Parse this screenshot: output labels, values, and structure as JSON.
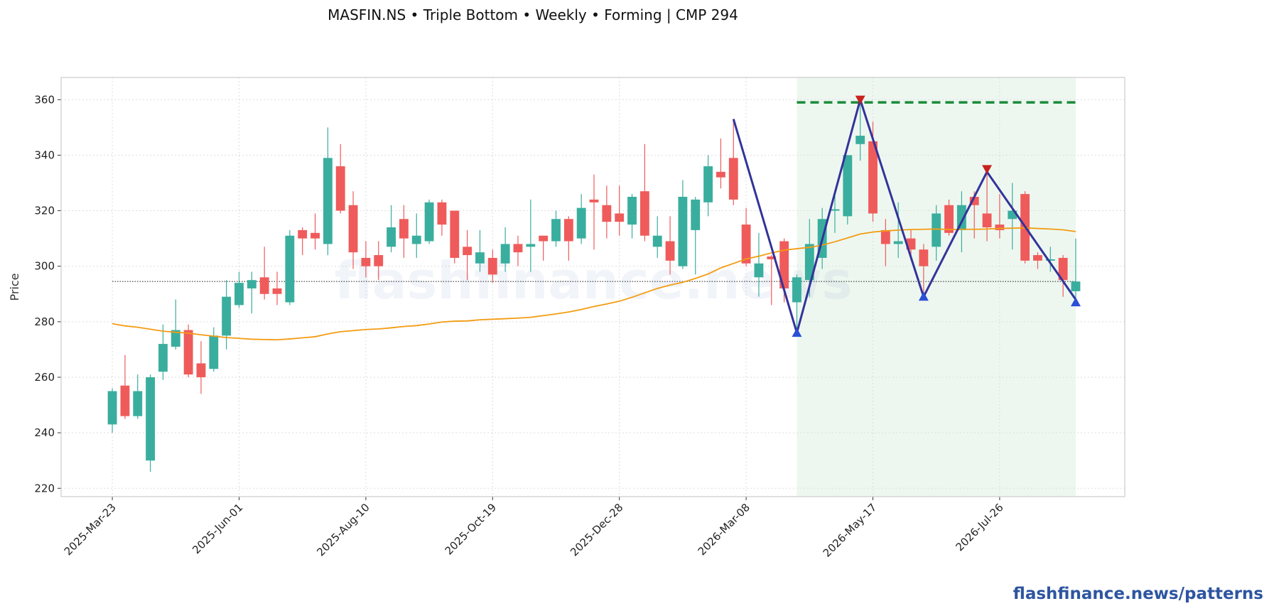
{
  "chart_data": {
    "type": "candlestick",
    "title": "MASFIN.NS  •  Triple Bottom  •  Weekly  •  Forming  |  CMP 294",
    "ylabel": "Price",
    "watermark": "flashfinance.news",
    "footer": "flashfinance.news/patterns",
    "x": [
      "2025-Mar-23",
      "2025-Mar-30",
      "2025-Apr-06",
      "2025-Apr-13",
      "2025-Apr-20",
      "2025-Apr-27",
      "2025-May-04",
      "2025-May-11",
      "2025-May-18",
      "2025-May-25",
      "2025-Jun-01",
      "2025-Jun-08",
      "2025-Jun-15",
      "2025-Jun-22",
      "2025-Jun-29",
      "2025-Jul-06",
      "2025-Jul-13",
      "2025-Jul-20",
      "2025-Jul-27",
      "2025-Aug-03",
      "2025-Aug-10",
      "2025-Aug-17",
      "2025-Aug-24",
      "2025-Aug-31",
      "2025-Sep-07",
      "2025-Sep-14",
      "2025-Sep-21",
      "2025-Sep-28",
      "2025-Oct-05",
      "2025-Oct-12",
      "2025-Oct-19",
      "2025-Oct-26",
      "2025-Nov-02",
      "2025-Nov-09",
      "2025-Nov-16",
      "2025-Nov-23",
      "2025-Nov-30",
      "2025-Dec-07",
      "2025-Dec-14",
      "2025-Dec-21",
      "2025-Dec-28",
      "2026-Jan-04",
      "2026-Jan-11",
      "2026-Jan-18",
      "2026-Jan-25",
      "2026-Feb-01",
      "2026-Feb-08",
      "2026-Feb-15",
      "2026-Feb-22",
      "2026-Mar-01",
      "2026-Mar-08",
      "2026-Mar-15",
      "2026-Mar-22",
      "2026-Mar-29",
      "2026-Apr-05",
      "2026-Apr-12",
      "2026-Apr-19",
      "2026-Apr-26",
      "2026-May-03",
      "2026-May-10",
      "2026-May-17",
      "2026-May-24",
      "2026-May-31",
      "2026-Jun-07",
      "2026-Jun-14",
      "2026-Jun-21",
      "2026-Jun-28",
      "2026-Jul-05",
      "2026-Jul-12",
      "2026-Jul-19",
      "2026-Jul-26",
      "2026-Aug-02",
      "2026-Aug-09",
      "2026-Aug-16",
      "2026-Aug-23",
      "2026-Aug-30",
      "2026-Sep-06"
    ],
    "open": [
      243,
      257,
      246,
      230,
      262,
      271,
      277,
      265,
      263,
      275,
      286,
      292,
      296,
      292,
      287,
      313,
      312,
      308,
      336,
      322,
      303,
      304,
      307,
      317,
      308,
      309,
      323,
      320,
      307,
      301,
      303,
      301,
      308,
      307,
      311,
      309,
      317,
      310,
      324,
      322,
      319,
      315,
      327,
      307,
      309,
      300,
      313,
      323,
      334,
      339,
      315,
      296,
      303.5,
      309,
      287,
      295,
      303,
      320,
      318,
      344,
      345,
      313,
      308,
      310,
      306,
      307,
      322,
      313,
      325,
      319,
      315,
      317,
      326,
      304,
      302,
      303,
      291
    ],
    "high": [
      256,
      268,
      261,
      261,
      279,
      288,
      279,
      273,
      278,
      295,
      298,
      298,
      307,
      298,
      313,
      314,
      319,
      350,
      344,
      327,
      309,
      309,
      322,
      322,
      319,
      324,
      324,
      320,
      313,
      313,
      306,
      314,
      311,
      324,
      311,
      320,
      318,
      326,
      333,
      329,
      329,
      326,
      344,
      318,
      318,
      331,
      325,
      340,
      346,
      353,
      321,
      312,
      304,
      310,
      297,
      317,
      321,
      326,
      340,
      360,
      352,
      317,
      323,
      313,
      308,
      322,
      324,
      327,
      327,
      334,
      326,
      330,
      327,
      305,
      307,
      304,
      310
    ],
    "low": [
      240,
      245,
      245,
      226,
      259,
      270,
      260,
      254,
      262,
      270,
      285,
      283,
      288,
      286,
      286,
      304,
      306,
      304,
      319,
      299,
      296,
      295,
      305,
      303,
      303,
      308,
      311,
      301,
      295,
      298,
      294,
      298,
      300,
      298,
      302,
      307,
      302,
      308,
      306,
      310,
      311,
      310,
      309,
      303,
      297,
      299,
      297,
      318,
      328,
      322,
      300,
      289,
      286,
      287,
      276,
      289,
      299,
      312,
      315,
      338,
      316,
      300,
      303,
      302,
      290,
      302,
      311,
      305,
      310,
      309,
      310,
      306,
      301,
      299,
      298,
      289,
      286
    ],
    "close": [
      255,
      246,
      255,
      260,
      272,
      277,
      261,
      260,
      275,
      289,
      294,
      295,
      290,
      290,
      311,
      310,
      310,
      339,
      320,
      305,
      300,
      300,
      314,
      310,
      311,
      323,
      315,
      303,
      304,
      305,
      297,
      308,
      305,
      308,
      309,
      317,
      309,
      321,
      323,
      316,
      316,
      325,
      311,
      311,
      302,
      325,
      324,
      336,
      332,
      324,
      301,
      301,
      302.5,
      292,
      296,
      308,
      317,
      320.5,
      340,
      347,
      319,
      308,
      309,
      306,
      300,
      319,
      312,
      322,
      322,
      314,
      313,
      320,
      302,
      302,
      302.5,
      295,
      294.5
    ],
    "up_color": "#3aae9e",
    "down_color": "#ef5b5b",
    "sma": {
      "color": "#f39c12",
      "values": [
        279.3,
        278.5,
        278,
        277.3,
        276.6,
        276.2,
        275.9,
        275.3,
        274.8,
        274.3,
        274,
        273.7,
        273.6,
        273.5,
        273.8,
        274.2,
        274.6,
        275.6,
        276.4,
        276.8,
        277.2,
        277.4,
        277.8,
        278.3,
        278.6,
        279.2,
        279.9,
        280.2,
        280.3,
        280.7,
        280.9,
        281.1,
        281.3,
        281.6,
        282.2,
        282.8,
        283.5,
        284.4,
        285.5,
        286.4,
        287.4,
        288.8,
        290.4,
        292,
        293.2,
        294.2,
        295.6,
        297.2,
        299.4,
        301,
        302.6,
        303.6,
        304.8,
        305.8,
        306.3,
        306.8,
        307.6,
        308.8,
        310.2,
        311.6,
        312.3,
        312.7,
        313,
        313.2,
        313.3,
        313.4,
        313.2,
        313.3,
        313.3,
        313.4,
        313.6,
        313.7,
        313.8,
        313.6,
        313.4,
        313.1,
        312.5
      ]
    },
    "reference_line": 294.5,
    "resistance": 359,
    "resistance_color": "#1a8a3a",
    "pattern_window": [
      "2026-Apr-05",
      "2026-Sep-06"
    ],
    "zone_color": "#e6f3ea",
    "pattern": {
      "color": "#33339a",
      "x": [
        "2026-Mar-01",
        "2026-Apr-05",
        "2026-May-10",
        "2026-Jun-14",
        "2026-Jul-19",
        "2026-Sep-06"
      ],
      "values": [
        353,
        276,
        360,
        289,
        334,
        288
      ]
    },
    "lows": {
      "color": "#2b4fd6",
      "x": [
        "2026-Apr-05",
        "2026-Jun-14",
        "2026-Sep-06"
      ],
      "values": [
        276,
        289,
        287
      ]
    },
    "highs": {
      "color": "#c8201e",
      "x": [
        "2026-May-10",
        "2026-Jul-19"
      ],
      "values": [
        360,
        335
      ]
    },
    "ylim": [
      217,
      368
    ],
    "yticks": [
      220,
      240,
      260,
      280,
      300,
      320,
      340,
      360
    ],
    "xticks": [
      "2025-Mar-23",
      "2025-Jun-01",
      "2025-Aug-10",
      "2025-Oct-19",
      "2025-Dec-28",
      "2026-Mar-08",
      "2026-May-17",
      "2026-Jul-26"
    ],
    "grid": true
  }
}
